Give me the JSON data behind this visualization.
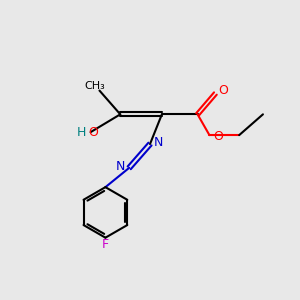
{
  "bg_color": "#e8e8e8",
  "bond_color": "#000000",
  "oxygen_color": "#ff0000",
  "nitrogen_color": "#0000cc",
  "fluorine_color": "#cc00cc",
  "hydrogen_color": "#008080",
  "line_width": 1.5,
  "figsize": [
    3.0,
    3.0
  ],
  "dpi": 100,
  "xlim": [
    0,
    10
  ],
  "ylim": [
    0,
    10
  ]
}
